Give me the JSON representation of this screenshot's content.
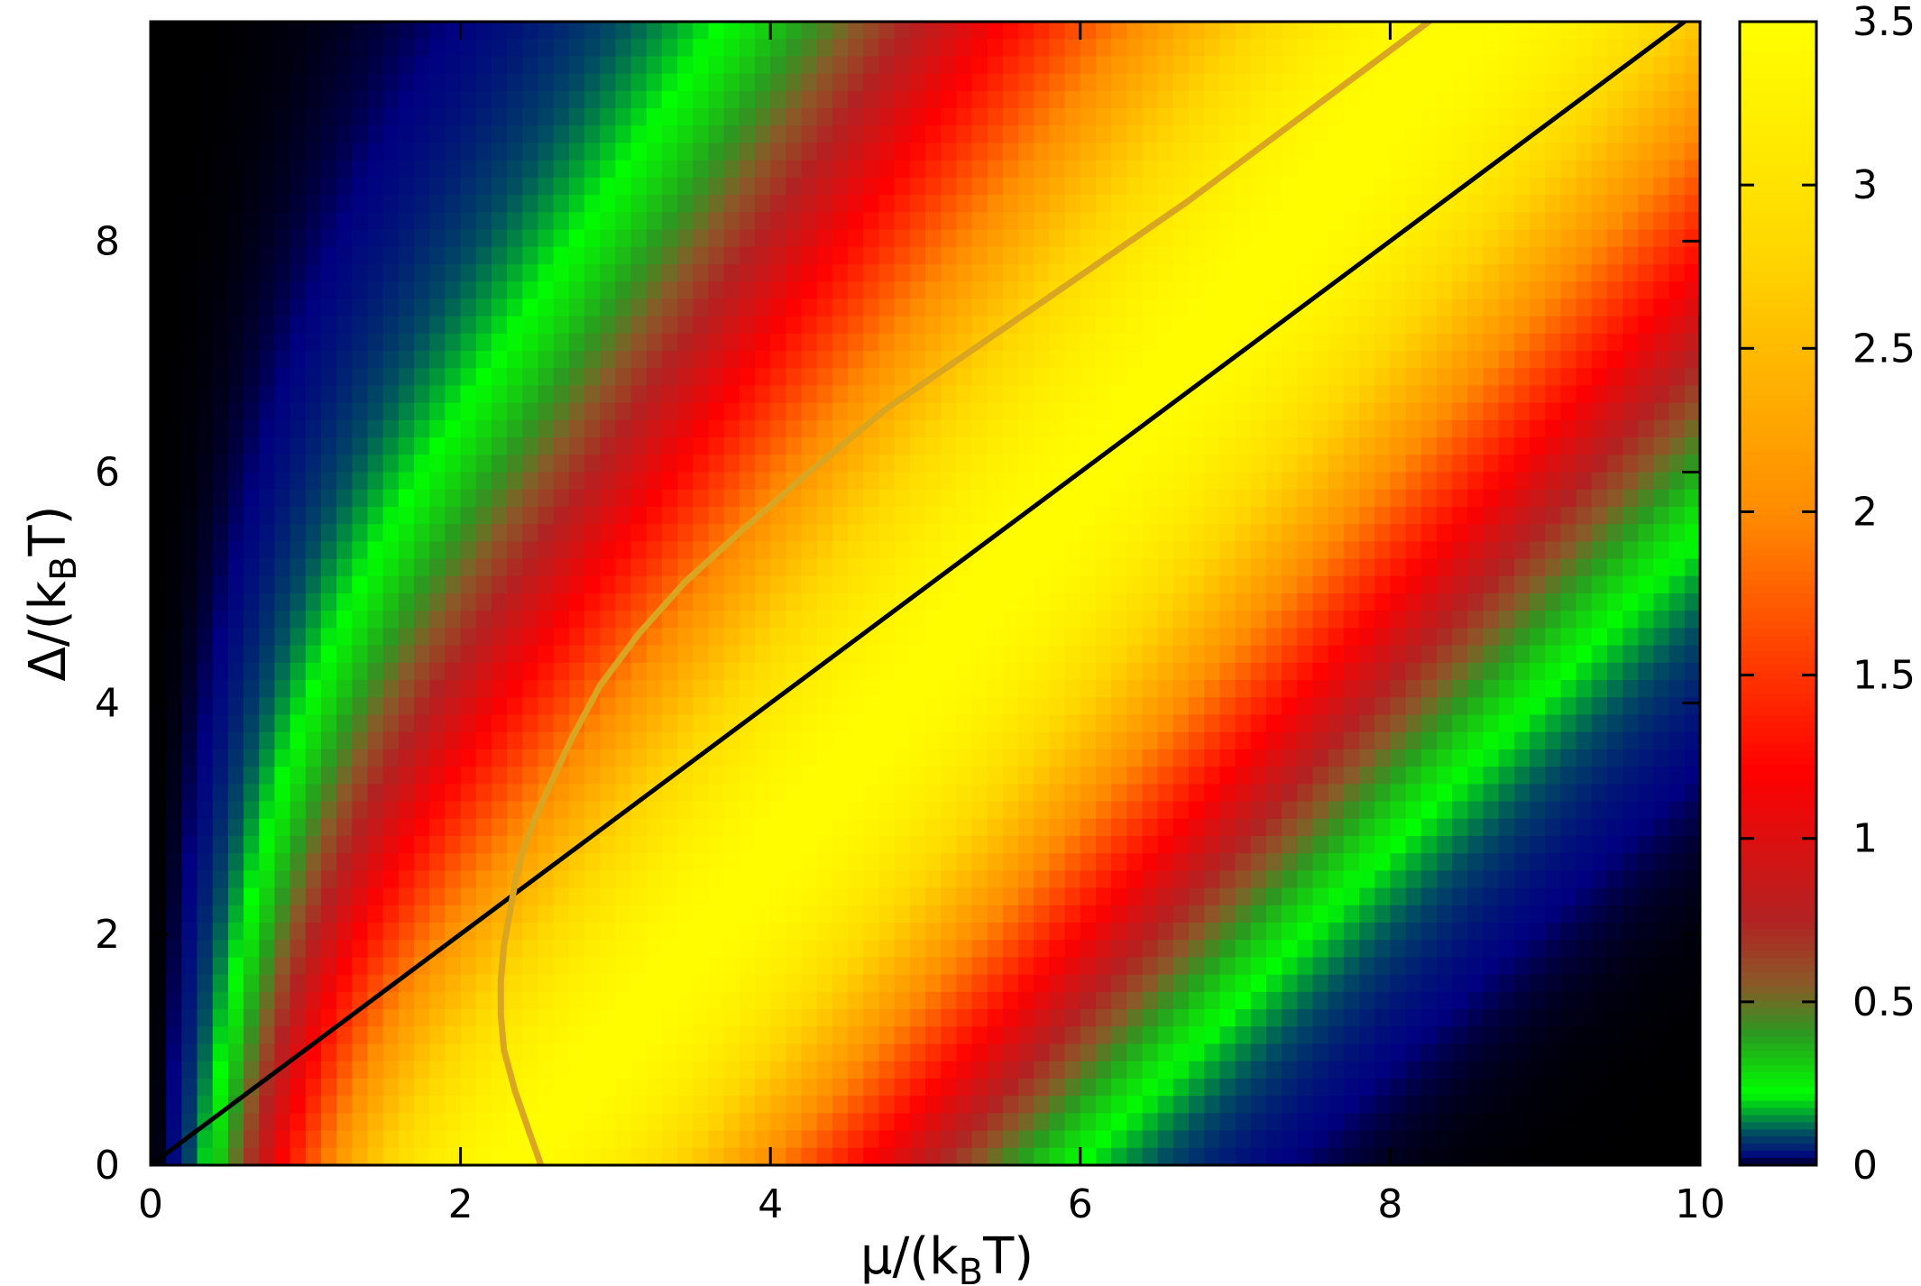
{
  "chart_data": {
    "type": "heatmap",
    "title": "",
    "xlabel": {
      "main": "μ/(k",
      "sub": "B",
      "tail": "T)"
    },
    "ylabel": {
      "main": "Δ/(k",
      "sub": "B",
      "tail": "T)"
    },
    "xlim": [
      0,
      10
    ],
    "ylim": [
      0,
      9.9
    ],
    "xticks": [
      0,
      2,
      4,
      6,
      8,
      10
    ],
    "yticks": [
      0,
      2,
      4,
      6,
      8
    ],
    "xtick_labels": [
      "0",
      "2",
      "4",
      "6",
      "8",
      "10"
    ],
    "ytick_labels": [
      "0",
      "2",
      "4",
      "6",
      "8"
    ],
    "grid": false,
    "colorbar": {
      "range": [
        0,
        3.5
      ],
      "ticks": [
        0,
        0.5,
        1,
        1.5,
        2,
        2.5,
        3,
        3.5
      ],
      "tick_labels": [
        "0",
        "0.5",
        "1",
        "1.5",
        "2",
        "2.5",
        "3",
        "3.5"
      ],
      "palette": [
        {
          "v": 0.0,
          "color": "#000000"
        },
        {
          "v": 0.02,
          "color": "#000080"
        },
        {
          "v": 0.1,
          "color": "#005060"
        },
        {
          "v": 0.22,
          "color": "#00ff00"
        },
        {
          "v": 0.4,
          "color": "#2a9a20"
        },
        {
          "v": 0.55,
          "color": "#8a5a28"
        },
        {
          "v": 0.75,
          "color": "#b22222"
        },
        {
          "v": 1.2,
          "color": "#ff0000"
        },
        {
          "v": 2.0,
          "color": "#ff8c00"
        },
        {
          "v": 2.8,
          "color": "#ffd700"
        },
        {
          "v": 3.5,
          "color": "#ffff00"
        }
      ]
    },
    "overlay_series": [
      {
        "style": "solid",
        "color": "#000000",
        "x": [
          0,
          9.9
        ],
        "y": [
          0,
          9.9
        ]
      },
      {
        "style": "solid",
        "color": "#daa520",
        "x": [
          2.52,
          2.44,
          2.35,
          2.28,
          2.26,
          2.26,
          2.28,
          2.32,
          2.36,
          2.41,
          2.48,
          2.58,
          2.72,
          2.9,
          3.15,
          3.45,
          3.82,
          4.25,
          4.75,
          5.35,
          6.0,
          6.7,
          7.45,
          8.25
        ],
        "y": [
          0.0,
          0.3,
          0.65,
          1.0,
          1.3,
          1.6,
          1.9,
          2.2,
          2.5,
          2.75,
          3.0,
          3.3,
          3.7,
          4.15,
          4.6,
          5.05,
          5.5,
          6.0,
          6.55,
          7.1,
          7.7,
          8.35,
          9.1,
          9.9
        ]
      }
    ]
  }
}
